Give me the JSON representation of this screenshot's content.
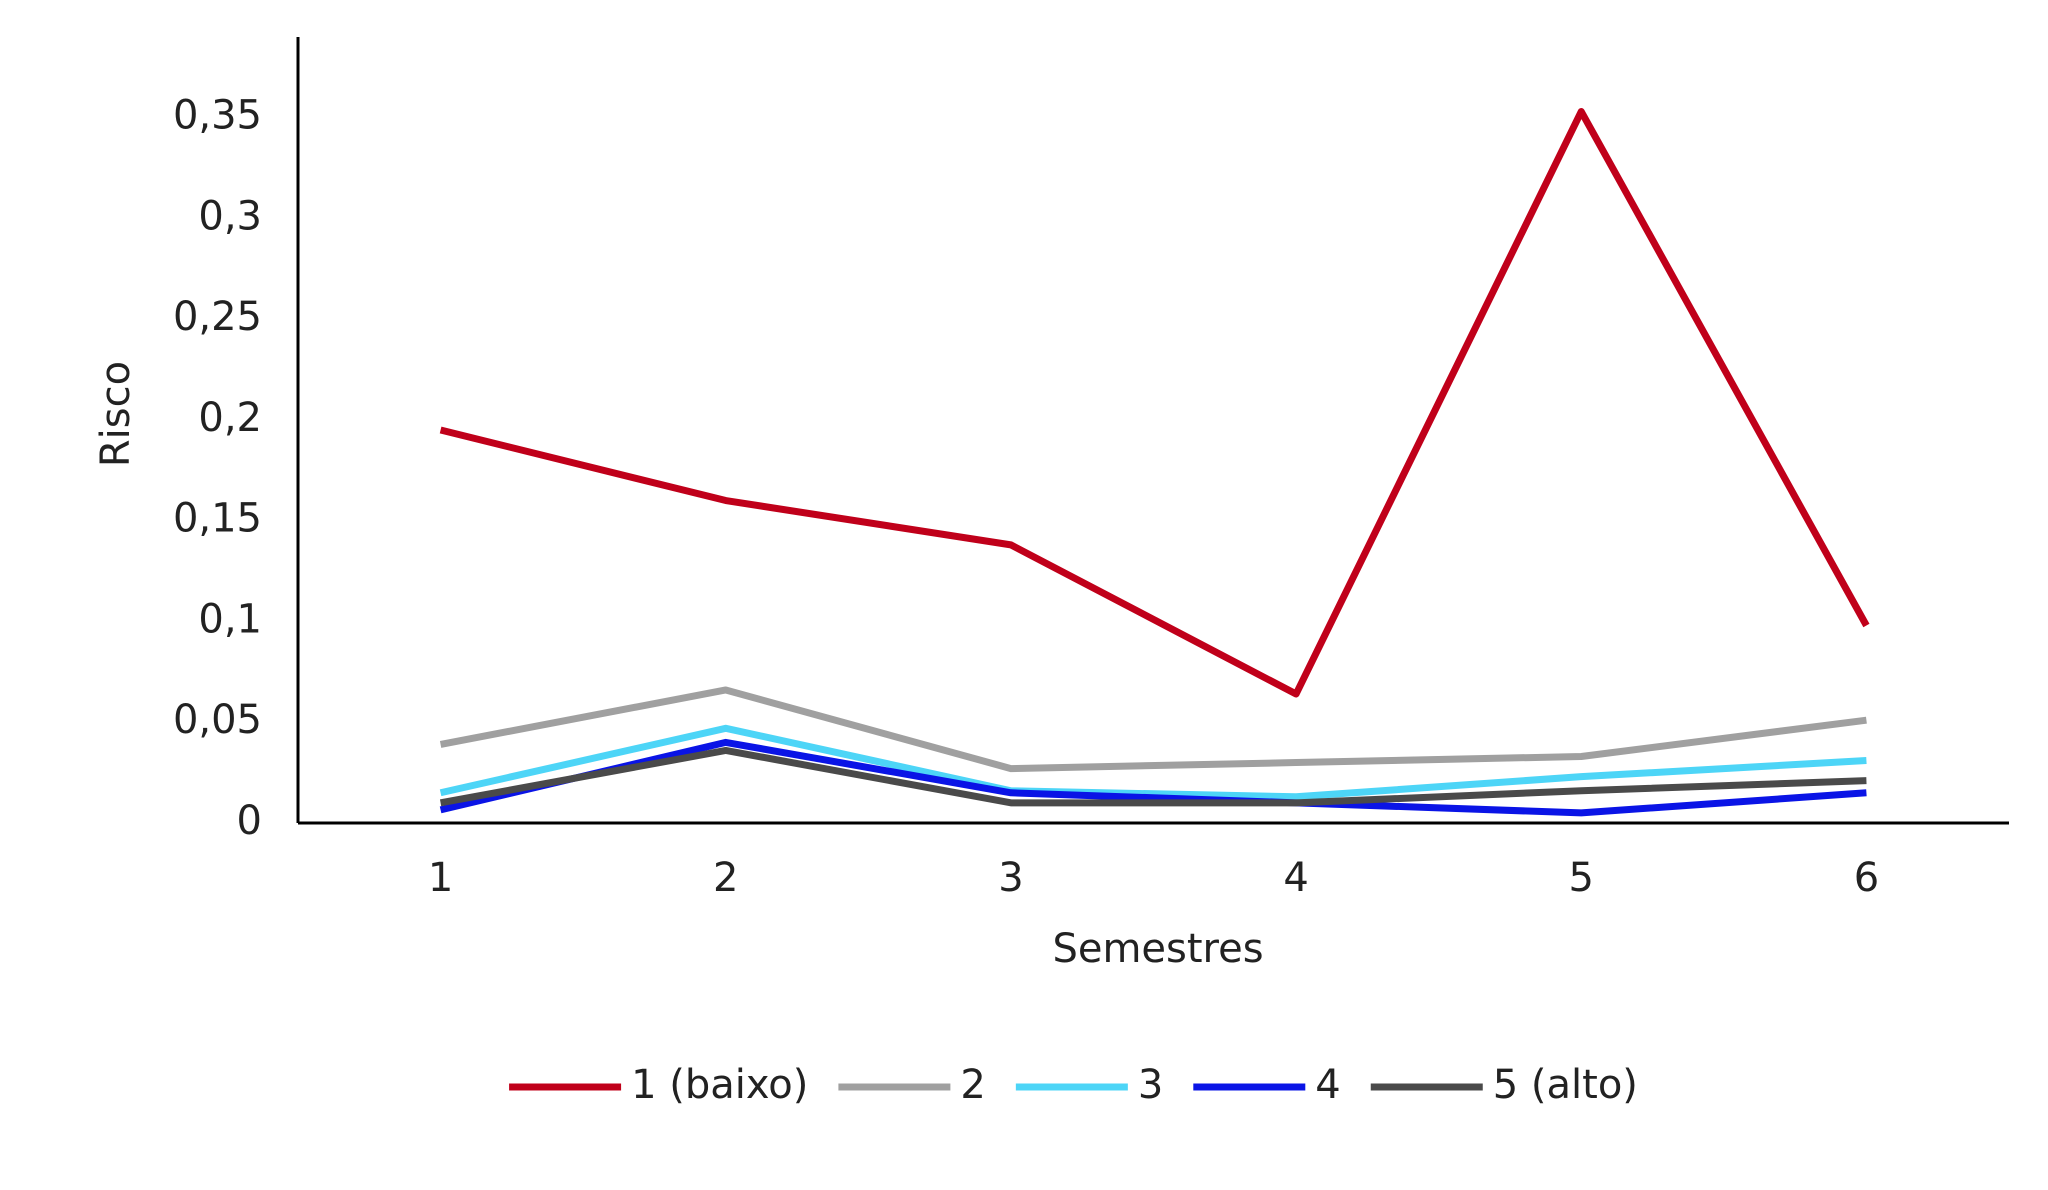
{
  "chart_data": {
    "type": "line",
    "x_label": "Semestres",
    "y_label": "Risco",
    "categories": [
      "1",
      "2",
      "3",
      "4",
      "5",
      "6"
    ],
    "series": [
      {
        "name": "1 (baixo)",
        "color": "#c0001a",
        "values": [
          0.195,
          0.16,
          0.138,
          0.064,
          0.353,
          0.098
        ]
      },
      {
        "name": "2",
        "color": "#a0a0a0",
        "values": [
          0.039,
          0.066,
          0.027,
          0.03,
          0.033,
          0.051
        ]
      },
      {
        "name": "3",
        "color": "#4dd5f7",
        "values": [
          0.015,
          0.047,
          0.016,
          0.013,
          0.023,
          0.031
        ]
      },
      {
        "name": "4",
        "color": "#0a14e6",
        "values": [
          0.0065,
          0.04,
          0.015,
          0.01,
          0.005,
          0.015
        ]
      },
      {
        "name": "5 (alto)",
        "color": "#4a4a4a",
        "values": [
          0.01,
          0.036,
          0.01,
          0.01,
          0.016,
          0.021
        ]
      }
    ],
    "ylim": [
      0,
      0.39
    ],
    "yticks": [
      0,
      {
        "value": 0.05,
        "label": "0,05"
      },
      {
        "value": 0.1,
        "label": "0,1"
      },
      {
        "value": 0.15,
        "label": "0,15"
      },
      {
        "value": 0.2,
        "label": "0,2"
      },
      {
        "value": 0.25,
        "label": "0,25"
      },
      {
        "value": 0.3,
        "label": "0,3"
      },
      {
        "value": 0.35,
        "label": "0,35"
      }
    ],
    "grid": false,
    "legend": "bottom"
  }
}
